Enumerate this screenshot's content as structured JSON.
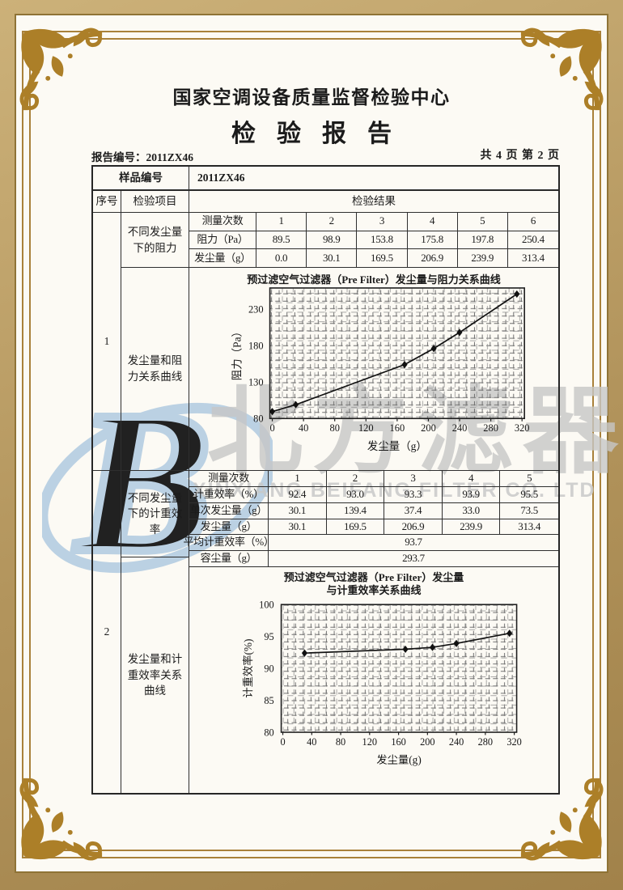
{
  "page": {
    "center_name": "国家空调设备质量监督检验中心",
    "report_title": "检验报告",
    "report_no": "报告编号：2011ZX46",
    "pagination": "共 4 页 第 2 页"
  },
  "watermark": {
    "cn": "北方滤器",
    "en": "XINXIANG BEIFANG FILTER CO. LTD",
    "logo_letter": "B",
    "logo_color": "#b8cfe3",
    "text_color": "#c7c7c7"
  },
  "frame": {
    "gold_line": "#a9813a",
    "ornament_gold": "#ac7f28",
    "band_light": "#ccb179",
    "band_dark": "#a1824a"
  },
  "table": {
    "sample_label": "样品编号",
    "sample_value": "2011ZX46",
    "col_seq": "序号",
    "col_item": "检验项目",
    "col_result": "检验结果",
    "section1": {
      "seq": "1",
      "item_top": "不同发尘量下的阻力",
      "item_bottom": "发尘量和阻力关系曲线"
    },
    "section2": {
      "seq": "2",
      "item_top": "不同发尘量下的计重效率",
      "item_bottom": "发尘量和计重效率关系曲线"
    },
    "resistance": {
      "rows": [
        {
          "label": "测量次数",
          "values": [
            "1",
            "2",
            "3",
            "4",
            "5",
            "6"
          ]
        },
        {
          "label": "阻力（Pa）",
          "values": [
            "89.5",
            "98.9",
            "153.8",
            "175.8",
            "197.8",
            "250.4"
          ]
        },
        {
          "label": "发尘量（g）",
          "values": [
            "0.0",
            "30.1",
            "169.5",
            "206.9",
            "239.9",
            "313.4"
          ]
        }
      ]
    },
    "efficiency": {
      "rows": [
        {
          "label": "测量次数",
          "values": [
            "1",
            "2",
            "3",
            "4",
            "5"
          ]
        },
        {
          "label": "计重效率（%）",
          "values": [
            "92.4",
            "93.0",
            "93.3",
            "93.9",
            "95.5"
          ]
        },
        {
          "label": "单次发尘量（g）",
          "values": [
            "30.1",
            "139.4",
            "37.4",
            "33.0",
            "73.5"
          ]
        },
        {
          "label": "发尘量（g）",
          "values": [
            "30.1",
            "169.5",
            "206.9",
            "239.9",
            "313.4"
          ]
        }
      ],
      "span_rows": [
        {
          "label": "平均计重效率（%）",
          "value": "93.7"
        },
        {
          "label": "容尘量（g）",
          "value": "293.7"
        }
      ]
    }
  },
  "chart_data": [
    {
      "type": "line",
      "title": "预过滤空气过滤器（Pre Filter）发尘量与阻力关系曲线",
      "xlabel": "发尘量（g）",
      "ylabel": "阻力（Pa）",
      "x": [
        0,
        30.1,
        169.5,
        206.9,
        239.9,
        313.4
      ],
      "y": [
        89.5,
        98.9,
        153.8,
        175.8,
        197.8,
        250.4
      ],
      "xlim": [
        0,
        320
      ],
      "ylim": [
        80,
        260
      ],
      "xticks": [
        0,
        40,
        80,
        120,
        160,
        200,
        240,
        280,
        320
      ],
      "yticks": [
        80,
        130,
        180,
        230
      ],
      "grid": true,
      "legend": "none",
      "marker": "diamond"
    },
    {
      "type": "line",
      "title": "预过滤空气过滤器（Pre Filter）发尘量",
      "title_line2": "与计重效率关系曲线",
      "xlabel": "发尘量(g)",
      "ylabel": "计重效率(%)",
      "x": [
        30.1,
        169.5,
        206.9,
        239.9,
        313.4
      ],
      "y": [
        92.4,
        93.0,
        93.3,
        93.9,
        95.5
      ],
      "xlim": [
        0,
        320
      ],
      "ylim": [
        80,
        100
      ],
      "xticks": [
        0,
        40,
        80,
        120,
        160,
        200,
        240,
        280,
        320
      ],
      "yticks": [
        80,
        85,
        90,
        95,
        100
      ],
      "grid": true,
      "legend": "none",
      "marker": "diamond"
    }
  ]
}
